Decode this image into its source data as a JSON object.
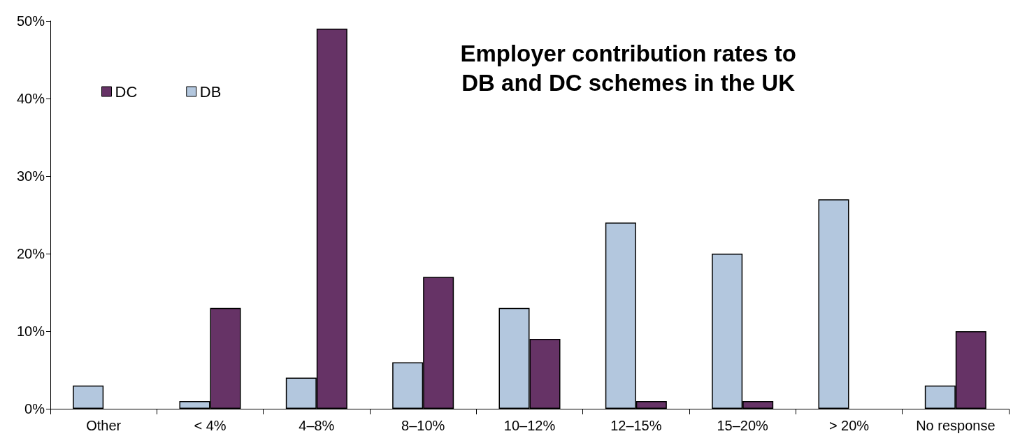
{
  "chart_data": {
    "type": "bar",
    "title": "Employer contribution rates to\nDB and DC schemes in the UK",
    "categories": [
      "Other",
      "< 4%",
      "4–8%",
      "8–10%",
      "10–12%",
      "12–15%",
      "15–20%",
      "> 20%",
      "No response"
    ],
    "series": [
      {
        "name": "DB",
        "color": "#b3c7de",
        "values": [
          3,
          1,
          4,
          6,
          13,
          24,
          20,
          27,
          3
        ]
      },
      {
        "name": "DC",
        "color": "#663366",
        "values": [
          null,
          13,
          49,
          17,
          9,
          1,
          1,
          null,
          10
        ]
      }
    ],
    "ylim": [
      0,
      50
    ],
    "yticks": [
      {
        "value": 0,
        "label": "0%"
      },
      {
        "value": 10,
        "label": "10%"
      },
      {
        "value": 20,
        "label": "20%"
      },
      {
        "value": 30,
        "label": "30%"
      },
      {
        "value": 40,
        "label": "40%"
      },
      {
        "value": 50,
        "label": "50%"
      }
    ],
    "grid": false,
    "legend": "top left"
  }
}
